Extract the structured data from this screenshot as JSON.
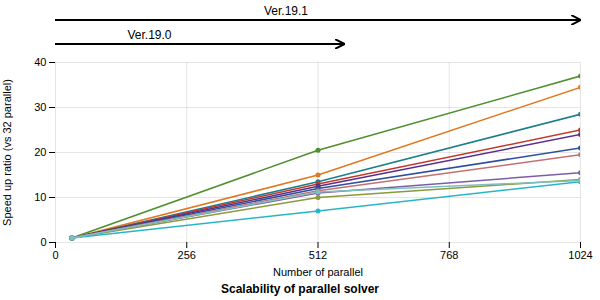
{
  "chart_data": {
    "type": "line",
    "title": "Scalability of parallel solver",
    "xlabel": "Number of parallel",
    "ylabel": "Speed up ratio (vs 32 parallel)",
    "x": [
      32,
      512,
      1024
    ],
    "xlim": [
      0,
      1024
    ],
    "ylim": [
      0,
      40
    ],
    "xticks": [
      0,
      256,
      512,
      768,
      1024
    ],
    "yticks": [
      0,
      10,
      20,
      30,
      40
    ],
    "grid": true,
    "marker": "circle",
    "annotations": [
      "Ver.19.1",
      "Ver.19.0"
    ],
    "series": [
      {
        "color": "#4e8f2e",
        "values": [
          1,
          20.5,
          37.0
        ]
      },
      {
        "color": "#e07820",
        "values": [
          1,
          15.0,
          34.5
        ]
      },
      {
        "color": "#1a7f8a",
        "values": [
          1,
          13.5,
          28.5
        ]
      },
      {
        "color": "#c0392b",
        "values": [
          1,
          13.0,
          25.0
        ]
      },
      {
        "color": "#5b2d8e",
        "values": [
          1,
          12.5,
          24.0
        ]
      },
      {
        "color": "#2c4f9e",
        "values": [
          1,
          12.0,
          21.0
        ]
      },
      {
        "color": "#c47070",
        "values": [
          1,
          11.5,
          19.5
        ]
      },
      {
        "color": "#7b5ea7",
        "values": [
          1,
          11.0,
          15.5
        ]
      },
      {
        "color": "#8a9a3c",
        "values": [
          1,
          10.0,
          14.0
        ]
      },
      {
        "color": "#29b5c8",
        "values": [
          1,
          7.0,
          13.5
        ]
      },
      {
        "color": "#7fbfbf",
        "values": [
          1,
          11.2,
          13.8
        ]
      }
    ]
  }
}
